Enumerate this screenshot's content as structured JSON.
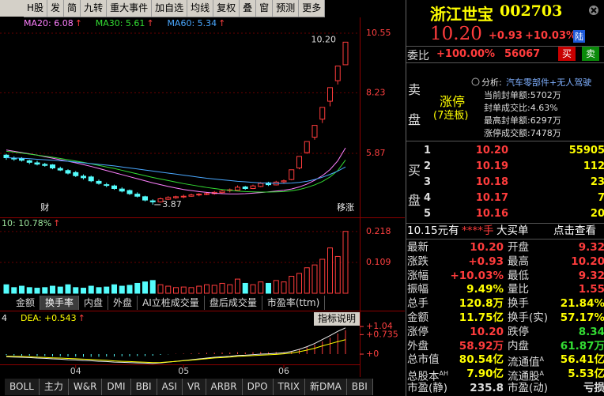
{
  "toolbar": [
    "H股",
    "发",
    "简",
    "九转",
    "重大事件",
    "加自选",
    "均线",
    "复权",
    "叠",
    "窗",
    "预测",
    "更多"
  ],
  "chart_data": {
    "type": "candlestick",
    "up_color": "#ff3c3c",
    "down_color": "#54fcfc",
    "ylim": [
      3.53,
      10.98
    ],
    "yticks": [
      10.55,
      8.23,
      5.87
    ],
    "grid": true,
    "candles": [
      [
        5.8,
        5.85,
        5.62,
        5.7
      ],
      [
        5.68,
        5.75,
        5.58,
        5.65
      ],
      [
        5.66,
        5.72,
        5.55,
        5.6
      ],
      [
        5.58,
        5.62,
        5.45,
        5.52
      ],
      [
        5.5,
        5.58,
        5.4,
        5.45
      ],
      [
        5.44,
        5.5,
        5.35,
        5.4
      ],
      [
        5.42,
        5.45,
        5.25,
        5.3
      ],
      [
        5.28,
        5.35,
        5.18,
        5.22
      ],
      [
        5.2,
        5.25,
        5.05,
        5.1
      ],
      [
        5.12,
        5.18,
        4.95,
        5.0
      ],
      [
        4.98,
        5.05,
        4.85,
        4.92
      ],
      [
        4.95,
        5.0,
        4.75,
        4.8
      ],
      [
        4.78,
        4.85,
        4.65,
        4.7
      ],
      [
        4.65,
        4.72,
        4.55,
        4.62
      ],
      [
        4.6,
        4.65,
        4.45,
        4.5
      ],
      [
        4.48,
        4.55,
        4.35,
        4.4
      ],
      [
        4.42,
        4.46,
        4.25,
        4.3
      ],
      [
        4.28,
        4.35,
        4.15,
        4.2
      ],
      [
        4.18,
        4.22,
        4.0,
        4.05
      ],
      [
        4.02,
        4.08,
        3.87,
        3.98
      ],
      [
        3.98,
        4.15,
        3.95,
        4.1
      ],
      [
        4.08,
        4.2,
        4.05,
        4.15
      ],
      [
        4.14,
        4.22,
        4.1,
        4.18
      ],
      [
        4.17,
        4.26,
        4.12,
        4.2
      ],
      [
        4.2,
        4.3,
        4.18,
        4.25
      ],
      [
        4.26,
        4.32,
        4.2,
        4.28
      ],
      [
        4.27,
        4.35,
        4.24,
        4.3
      ],
      [
        4.3,
        4.4,
        4.26,
        4.35
      ],
      [
        4.34,
        4.45,
        4.3,
        4.4
      ],
      [
        4.42,
        4.5,
        4.35,
        4.45
      ],
      [
        4.44,
        4.62,
        4.42,
        4.55
      ],
      [
        4.56,
        4.6,
        4.45,
        4.5
      ],
      [
        4.5,
        4.65,
        4.48,
        4.6
      ],
      [
        4.58,
        4.75,
        4.55,
        4.7
      ],
      [
        4.72,
        4.76,
        4.6,
        4.65
      ],
      [
        4.64,
        4.8,
        4.62,
        4.75
      ],
      [
        4.76,
        4.85,
        4.7,
        4.8
      ],
      [
        4.85,
        5.23,
        4.82,
        5.23
      ],
      [
        5.3,
        5.75,
        5.25,
        5.75
      ],
      [
        5.9,
        6.33,
        5.85,
        6.33
      ],
      [
        6.5,
        6.96,
        6.4,
        6.96
      ],
      [
        7.2,
        7.66,
        7.05,
        7.66
      ],
      [
        7.9,
        8.43,
        7.7,
        8.43
      ],
      [
        8.7,
        9.27,
        8.55,
        9.27
      ],
      [
        9.32,
        10.2,
        9.32,
        10.2
      ]
    ],
    "ma": [
      {
        "label": "MA20: 6.08",
        "arrow": "↑",
        "color": "#ff80ff",
        "values": [
          6.0,
          5.95,
          5.9,
          5.85,
          5.8,
          5.74,
          5.68,
          5.62,
          5.56,
          5.5,
          5.43,
          5.36,
          5.28,
          5.2,
          5.12,
          5.04,
          4.96,
          4.88,
          4.8,
          4.72,
          4.65,
          4.58,
          4.52,
          4.46,
          4.42,
          4.38,
          4.35,
          4.32,
          4.3,
          4.29,
          4.29,
          4.3,
          4.32,
          4.34,
          4.37,
          4.4,
          4.43,
          4.48,
          4.56,
          4.67,
          4.82,
          5.0,
          5.24,
          5.58,
          6.08
        ]
      },
      {
        "label": "MA30: 5.61",
        "arrow": "↑",
        "color": "#33dd33",
        "values": [
          5.95,
          5.92,
          5.88,
          5.84,
          5.8,
          5.76,
          5.72,
          5.67,
          5.62,
          5.57,
          5.52,
          5.46,
          5.4,
          5.34,
          5.28,
          5.21,
          5.14,
          5.07,
          5.0,
          4.93,
          4.87,
          4.81,
          4.75,
          4.69,
          4.64,
          4.59,
          4.54,
          4.5,
          4.46,
          4.43,
          4.4,
          4.38,
          4.37,
          4.36,
          4.36,
          4.37,
          4.38,
          4.41,
          4.46,
          4.54,
          4.64,
          4.77,
          4.95,
          5.2,
          5.61
        ]
      },
      {
        "label": "MA60: 5.34",
        "arrow": "↑",
        "color": "#4aa8ff",
        "values": [
          5.7,
          5.69,
          5.68,
          5.66,
          5.64,
          5.62,
          5.6,
          5.58,
          5.56,
          5.53,
          5.5,
          5.47,
          5.44,
          5.41,
          5.38,
          5.34,
          5.3,
          5.26,
          5.22,
          5.18,
          5.14,
          5.1,
          5.06,
          5.02,
          4.98,
          4.94,
          4.9,
          4.87,
          4.84,
          4.81,
          4.78,
          4.76,
          4.74,
          4.72,
          4.71,
          4.7,
          4.7,
          4.71,
          4.74,
          4.78,
          4.85,
          4.94,
          5.05,
          5.18,
          5.34
        ]
      }
    ],
    "high_label": "10.20",
    "low_label": "3.87",
    "markers": [
      {
        "at": 5,
        "text": "财"
      },
      {
        "at": 44,
        "text": "移涨"
      }
    ],
    "volume": {
      "label": "10: 10.78%",
      "arrow": "↑",
      "ylim": [
        0,
        0.254
      ],
      "yticks": [
        0.218,
        0.109
      ],
      "values": [
        0.03,
        0.02,
        0.025,
        0.02,
        0.018,
        0.02,
        0.025,
        0.022,
        0.03,
        0.02,
        0.018,
        0.025,
        0.02,
        0.022,
        0.03,
        0.025,
        0.028,
        0.035,
        0.04,
        0.045,
        0.03,
        0.025,
        0.02,
        0.022,
        0.02,
        0.025,
        0.03,
        0.028,
        0.035,
        0.03,
        0.05,
        0.035,
        0.03,
        0.04,
        0.035,
        0.045,
        0.04,
        0.06,
        0.07,
        0.09,
        0.1,
        0.12,
        0.16,
        0.13,
        0.2184
      ]
    },
    "macd": {
      "label_left": "4",
      "dea_label": "DEA: +0.543",
      "arrow": "↑",
      "ylim": [
        -0.357,
        1.49
      ],
      "yticks": [
        {
          "value": 1.04,
          "label": "+1.04"
        },
        {
          "value": 0.735,
          "label": "+0.735"
        },
        {
          "value": 0,
          "label": "+0"
        }
      ],
      "bars": [
        -0.04,
        -0.05,
        -0.06,
        -0.06,
        -0.07,
        -0.07,
        -0.08,
        -0.08,
        -0.09,
        -0.09,
        -0.1,
        -0.1,
        -0.1,
        -0.09,
        -0.09,
        -0.08,
        -0.08,
        -0.07,
        -0.07,
        -0.06,
        -0.03,
        -0.01,
        0.01,
        0.02,
        0.03,
        0.04,
        0.05,
        0.05,
        0.06,
        0.06,
        0.07,
        0.06,
        0.07,
        0.08,
        0.07,
        0.08,
        0.08,
        0.12,
        0.18,
        0.26,
        0.36,
        0.48,
        0.62,
        0.78,
        0.9
      ],
      "dif": [
        -0.1,
        -0.11,
        -0.12,
        -0.13,
        -0.15,
        -0.16,
        -0.18,
        -0.19,
        -0.21,
        -0.22,
        -0.24,
        -0.25,
        -0.27,
        -0.28,
        -0.3,
        -0.31,
        -0.32,
        -0.33,
        -0.34,
        -0.35,
        -0.33,
        -0.3,
        -0.27,
        -0.24,
        -0.21,
        -0.18,
        -0.15,
        -0.12,
        -0.1,
        -0.08,
        -0.05,
        -0.04,
        -0.02,
        0,
        0.01,
        0.03,
        0.05,
        0.1,
        0.18,
        0.28,
        0.4,
        0.55,
        0.7,
        0.86,
        0.99
      ],
      "dea": [
        -0.08,
        -0.085,
        -0.09,
        -0.1,
        -0.115,
        -0.125,
        -0.14,
        -0.15,
        -0.165,
        -0.175,
        -0.19,
        -0.2,
        -0.22,
        -0.235,
        -0.255,
        -0.27,
        -0.28,
        -0.295,
        -0.305,
        -0.32,
        -0.315,
        -0.295,
        -0.275,
        -0.25,
        -0.225,
        -0.2,
        -0.175,
        -0.145,
        -0.13,
        -0.11,
        -0.085,
        -0.07,
        -0.055,
        -0.04,
        -0.025,
        -0.01,
        0.01,
        0.04,
        0.09,
        0.15,
        0.22,
        0.31,
        0.39,
        0.47,
        0.543
      ]
    },
    "date_ticks": [
      {
        "at": 9,
        "label": "04"
      },
      {
        "at": 23,
        "label": "05"
      },
      {
        "at": 36,
        "label": "06"
      }
    ]
  },
  "mid_tabs": [
    "金额",
    "换手率",
    "内盘",
    "外盘",
    "AI立桩成交量",
    "盘后成交量",
    "市盈率(ttm)"
  ],
  "selected_tab": 1,
  "help_button": "指标说明",
  "bottom_tabs": [
    "BOLL",
    "主力",
    "W&R",
    "DMI",
    "BBI",
    "ASI",
    "VR",
    "ARBR",
    "DPO",
    "TRIX",
    "新DMA",
    "BBI"
  ],
  "quote": {
    "name": "浙江世宝",
    "code": "002703",
    "price": "10.20",
    "change": "+0.93",
    "pct": "+10.03%",
    "badge": "陆",
    "weibi_label": "委比",
    "weibi": "+100.00%",
    "weicha": "56067",
    "buy_btn": "买",
    "sell_btn": "卖"
  },
  "sell_side": {
    "label": [
      "卖",
      "盘"
    ],
    "limit": "涨停",
    "streak": "(7连板)",
    "analysis_label": "分析:",
    "analysis": "汽车零部件+无人驾驶",
    "details": [
      "当前封单额:5702万",
      "封单成交比:4.63%",
      "最高封单额:6297万",
      "涨停成交额:7478万"
    ]
  },
  "buy_side": {
    "label": [
      "买",
      "盘"
    ],
    "rows": [
      [
        "1",
        "10.20",
        "55905"
      ],
      [
        "2",
        "10.19",
        "112"
      ],
      [
        "3",
        "10.18",
        "23"
      ],
      [
        "4",
        "10.17",
        "7"
      ],
      [
        "5",
        "10.16",
        "20"
      ]
    ]
  },
  "big_order": {
    "price": "10.15元有",
    "qty": "****手",
    "kind": "大买单",
    "link": "点击查看"
  },
  "stats": [
    [
      {
        "label": "最新",
        "value": "10.20",
        "color": "#ff3c3c"
      },
      {
        "label": "开盘",
        "value": "9.32",
        "color": "#ff3c3c"
      }
    ],
    [
      {
        "label": "涨跌",
        "value": "+0.93",
        "color": "#ff3c3c"
      },
      {
        "label": "最高",
        "value": "10.20",
        "color": "#ff3c3c"
      }
    ],
    [
      {
        "label": "涨幅",
        "value": "+10.03%",
        "color": "#ff3c3c"
      },
      {
        "label": "最低",
        "value": "9.32",
        "color": "#ff3c3c"
      }
    ],
    [
      {
        "label": "振幅",
        "value": "9.49%",
        "color": "#ffff00"
      },
      {
        "label": "量比",
        "value": "1.55",
        "color": "#ff3c3c"
      }
    ],
    [
      {
        "label": "总手",
        "value": "120.8万",
        "color": "#ffff00"
      },
      {
        "label": "换手",
        "value": "21.84%",
        "color": "#ffff00"
      }
    ],
    [
      {
        "label": "金额",
        "value": "11.75亿",
        "color": "#ffff00"
      },
      {
        "label": "换手(实)",
        "value": "57.17%",
        "color": "#ffff00"
      }
    ],
    [
      {
        "label": "涨停",
        "value": "10.20",
        "color": "#ff3c3c"
      },
      {
        "label": "跌停",
        "value": "8.34",
        "color": "#33dd33"
      }
    ],
    [
      {
        "label": "外盘",
        "value": "58.92万",
        "color": "#ff3c3c"
      },
      {
        "label": "内盘",
        "value": "61.87万",
        "color": "#33dd33"
      }
    ],
    [
      {
        "label": "总市值",
        "value": "80.54亿",
        "color": "#ffff00"
      },
      {
        "label": "流通值",
        "sup": "A",
        "value": "56.41亿",
        "color": "#ffff00"
      }
    ],
    [
      {
        "label": "总股本",
        "sup": "AH",
        "value": "7.90亿",
        "color": "#ffff00"
      },
      {
        "label": "流通股",
        "sup": "A",
        "value": "5.53亿",
        "color": "#ffff00"
      }
    ],
    [
      {
        "label": "市盈(静)",
        "value": "235.8",
        "color": "#dddddd"
      },
      {
        "label": "市盈(动)",
        "value": "亏损",
        "color": "#dddddd"
      }
    ]
  ]
}
